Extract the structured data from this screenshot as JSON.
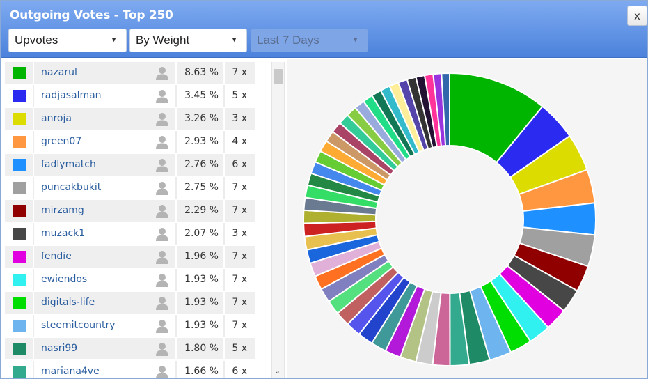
{
  "window": {
    "title": "Outgoing Votes - Top 250",
    "close_label": "x"
  },
  "filters": {
    "vote_type": "Upvotes",
    "sort": "By Weight",
    "range": "Last 7 Days"
  },
  "voters": [
    {
      "name": "nazarul",
      "percent": "8.63 %",
      "count": "7 x",
      "color": "#00b500"
    },
    {
      "name": "radjasalman",
      "percent": "3.45 %",
      "count": "5 x",
      "color": "#2a2af0"
    },
    {
      "name": "anroja",
      "percent": "3.26 %",
      "count": "3 x",
      "color": "#dcdc00"
    },
    {
      "name": "green07",
      "percent": "2.93 %",
      "count": "4 x",
      "color": "#ff9640"
    },
    {
      "name": "fadlymatch",
      "percent": "2.76 %",
      "count": "6 x",
      "color": "#1e90ff"
    },
    {
      "name": "puncakbukit",
      "percent": "2.75 %",
      "count": "7 x",
      "color": "#a0a0a0"
    },
    {
      "name": "mirzamg",
      "percent": "2.29 %",
      "count": "7 x",
      "color": "#900000"
    },
    {
      "name": "muzack1",
      "percent": "2.07 %",
      "count": "3 x",
      "color": "#474747"
    },
    {
      "name": "fendie",
      "percent": "1.96 %",
      "count": "7 x",
      "color": "#e000e0"
    },
    {
      "name": "ewiendos",
      "percent": "1.93 %",
      "count": "7 x",
      "color": "#30f0f0"
    },
    {
      "name": "digitals-life",
      "percent": "1.93 %",
      "count": "7 x",
      "color": "#00dd00"
    },
    {
      "name": "steemitcountry",
      "percent": "1.93 %",
      "count": "7 x",
      "color": "#6eb4ee"
    },
    {
      "name": "nasri99",
      "percent": "1.80 %",
      "count": "5 x",
      "color": "#1f8a66"
    },
    {
      "name": "mariana4ve",
      "percent": "1.66 %",
      "count": "6 x",
      "color": "#33aa8e"
    }
  ],
  "icons": {
    "user": "person-icon",
    "caret": "caret-down-icon",
    "scroll_down": "chevron-down-icon"
  },
  "chart_data": {
    "type": "pie",
    "donut": true,
    "slices": [
      {
        "color": "#00b500",
        "value": 8.63
      },
      {
        "color": "#2a2af0",
        "value": 3.45
      },
      {
        "color": "#dcdc00",
        "value": 3.26
      },
      {
        "color": "#ff9640",
        "value": 2.93
      },
      {
        "color": "#1e90ff",
        "value": 2.76
      },
      {
        "color": "#a0a0a0",
        "value": 2.75
      },
      {
        "color": "#900000",
        "value": 2.29
      },
      {
        "color": "#474747",
        "value": 2.07
      },
      {
        "color": "#e000e0",
        "value": 1.96
      },
      {
        "color": "#30f0f0",
        "value": 1.93
      },
      {
        "color": "#00dd00",
        "value": 1.93
      },
      {
        "color": "#6eb4ee",
        "value": 1.93
      },
      {
        "color": "#1f8a66",
        "value": 1.8
      },
      {
        "color": "#33aa8e",
        "value": 1.66
      },
      {
        "color": "#cc6699",
        "value": 1.5
      },
      {
        "color": "#cccccc",
        "value": 1.45
      },
      {
        "color": "#b3c386",
        "value": 1.4
      },
      {
        "color": "#b319d9",
        "value": 1.38
      },
      {
        "color": "#409999",
        "value": 1.35
      },
      {
        "color": "#2244cc",
        "value": 1.33
      },
      {
        "color": "#5555ee",
        "value": 1.3
      },
      {
        "color": "#c06060",
        "value": 1.28
      },
      {
        "color": "#55e080",
        "value": 1.26
      },
      {
        "color": "#8080c0",
        "value": 1.24
      },
      {
        "color": "#ff7020",
        "value": 1.22
      },
      {
        "color": "#e0b0d8",
        "value": 1.2
      },
      {
        "color": "#1a66dd",
        "value": 1.18
      },
      {
        "color": "#e8c050",
        "value": 1.16
      },
      {
        "color": "#cc2222",
        "value": 1.14
      },
      {
        "color": "#b0b030",
        "value": 1.12
      },
      {
        "color": "#6a7a90",
        "value": 1.1
      },
      {
        "color": "#33dd66",
        "value": 1.08
      },
      {
        "color": "#228844",
        "value": 1.06
      },
      {
        "color": "#4488ee",
        "value": 1.04
      },
      {
        "color": "#66cc33",
        "value": 1.02
      },
      {
        "color": "#ffaa33",
        "value": 1.0
      },
      {
        "color": "#cc9966",
        "value": 0.98
      },
      {
        "color": "#aa4466",
        "value": 0.96
      },
      {
        "color": "#33cc99",
        "value": 0.94
      },
      {
        "color": "#88cc44",
        "value": 0.92
      },
      {
        "color": "#99aadd",
        "value": 0.9
      },
      {
        "color": "#22dd88",
        "value": 0.88
      },
      {
        "color": "#117755",
        "value": 0.86
      },
      {
        "color": "#33bbcc",
        "value": 0.84
      },
      {
        "color": "#ffee99",
        "value": 0.82
      },
      {
        "color": "#5544aa",
        "value": 0.8
      },
      {
        "color": "#333333",
        "value": 0.78
      },
      {
        "color": "#221133",
        "value": 0.76
      },
      {
        "color": "#ff3399",
        "value": 0.74
      },
      {
        "color": "#9933dd",
        "value": 0.72
      },
      {
        "color": "#3366aa",
        "value": 0.7
      }
    ]
  }
}
